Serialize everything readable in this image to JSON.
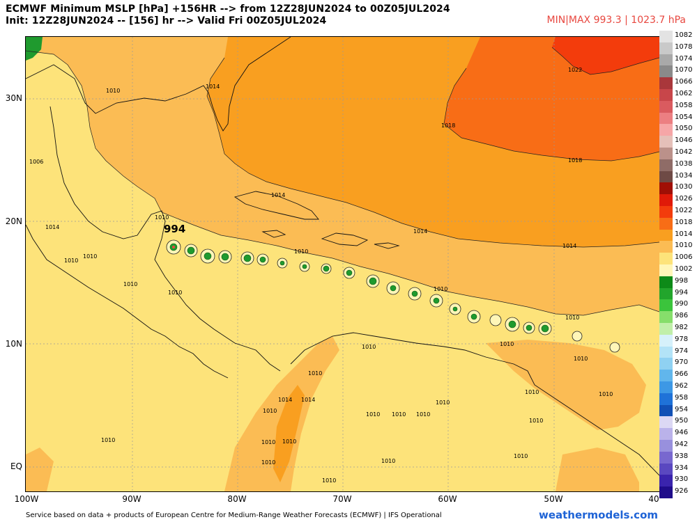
{
  "header": {
    "line1": "ECMWF Minimum MSLP [hPa] +156HR --> from 12Z28JUN2024 to 00Z05JUL2024",
    "line2": "Init: 12Z28JUN2024 -- [156] hr --> Valid Fri 00Z05JUL2024",
    "minmax": "MIN|MAX 993.3 | 1023.7 hPa"
  },
  "axes": {
    "lat_labels": [
      "30N",
      "20N",
      "10N",
      "EQ"
    ],
    "lon_labels": [
      "100W",
      "90W",
      "80W",
      "70W",
      "60W",
      "50W",
      "40"
    ]
  },
  "colors": {
    "fill_1006": "#fde37a",
    "fill_1010": "#fbbc54",
    "fill_1014": "#f99f20",
    "fill_1018": "#f86d16",
    "fill_1022": "#f33c0c",
    "low_center": "#1f9a2e"
  },
  "legend": [
    {
      "label": "1082",
      "color": "#e3e3e3"
    },
    {
      "label": "1078",
      "color": "#c9c9c9"
    },
    {
      "label": "1074",
      "color": "#a9a9a9"
    },
    {
      "label": "1070",
      "color": "#8a8a8a"
    },
    {
      "label": "1066",
      "color": "#a9373b"
    },
    {
      "label": "1062",
      "color": "#c8464a"
    },
    {
      "label": "1058",
      "color": "#da5b5f"
    },
    {
      "label": "1054",
      "color": "#ec7f82"
    },
    {
      "label": "1050",
      "color": "#f6a6a7"
    },
    {
      "label": "1046",
      "color": "#e5c0b9"
    },
    {
      "label": "1042",
      "color": "#bb918a"
    },
    {
      "label": "1038",
      "color": "#8f6c67"
    },
    {
      "label": "1034",
      "color": "#6e4a45"
    },
    {
      "label": "1030",
      "color": "#a00f05"
    },
    {
      "label": "1026",
      "color": "#e01a08"
    },
    {
      "label": "1022",
      "color": "#f33c0c"
    },
    {
      "label": "1018",
      "color": "#f86d16"
    },
    {
      "label": "1014",
      "color": "#f99f20"
    },
    {
      "label": "1010",
      "color": "#fbbc54"
    },
    {
      "label": "1006",
      "color": "#fde37a"
    },
    {
      "label": "1002",
      "color": "#fff6b8"
    },
    {
      "label": "998",
      "color": "#0d8a18"
    },
    {
      "label": "994",
      "color": "#22a52c"
    },
    {
      "label": "990",
      "color": "#3bc43c"
    },
    {
      "label": "986",
      "color": "#86de6b"
    },
    {
      "label": "982",
      "color": "#c1efaa"
    },
    {
      "label": "978",
      "color": "#d6f1fb"
    },
    {
      "label": "974",
      "color": "#b3e3f7"
    },
    {
      "label": "970",
      "color": "#8fd1f2"
    },
    {
      "label": "966",
      "color": "#61b6ec"
    },
    {
      "label": "962",
      "color": "#3d98e5"
    },
    {
      "label": "958",
      "color": "#1f72d8"
    },
    {
      "label": "954",
      "color": "#1150b5"
    },
    {
      "label": "950",
      "color": "#dcd8f4"
    },
    {
      "label": "946",
      "color": "#bab2ea"
    },
    {
      "label": "942",
      "color": "#9890dd"
    },
    {
      "label": "938",
      "color": "#7868cf"
    },
    {
      "label": "934",
      "color": "#5a48c0"
    },
    {
      "label": "930",
      "color": "#3a24ad"
    },
    {
      "label": "926",
      "color": "#1f0c8a"
    }
  ],
  "map": {
    "peak_label": "994",
    "contour_labels": [
      "1010",
      "1014",
      "1018",
      "1022",
      "1006"
    ]
  },
  "footer": {
    "source": "Service based on data + products of European Centre for Medium-Range Weather Forecasts (ECMWF) | IFS Operational",
    "brand": "weathermodels.com"
  }
}
